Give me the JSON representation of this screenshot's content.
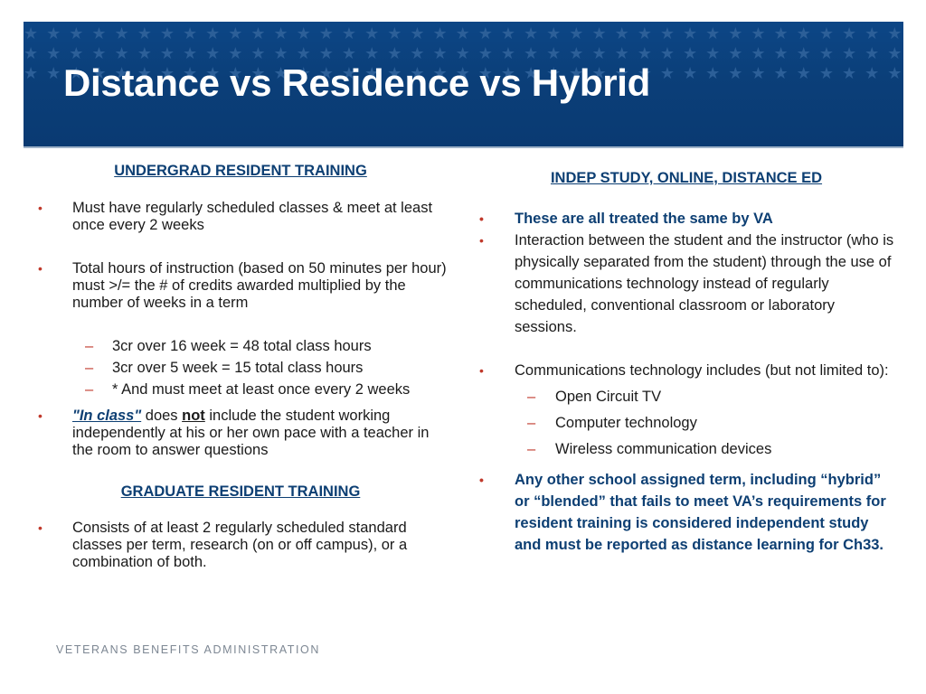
{
  "slide": {
    "title": "Distance vs Residence vs Hybrid",
    "footer": "VETERANS BENEFITS ADMINISTRATION",
    "colors": {
      "banner": "#0b3f79",
      "heading": "#0d3f73",
      "bullet": "#c0392b",
      "footer": "#7d8793"
    }
  },
  "left": {
    "heading1": "UNDERGRAD RESIDENT TRAINING",
    "b1": "Must have regularly scheduled classes & meet at least once every 2 weeks",
    "b2": "Total hours of instruction (based on 50 minutes per hour) must >/=  the # of credits awarded multiplied by the number of weeks in a term",
    "sub": [
      "3cr over 16 week = 48 total class hours",
      "3cr over 5 week = 15 total class hours",
      "* And must meet at least once every 2 weeks"
    ],
    "b3_em": "\"In class\"",
    "b3_a": " does ",
    "b3_not": "not",
    "b3_b": " include the student working independently at his or her own pace with a teacher in the room to answer questions",
    "heading2": "GRADUATE RESIDENT  TRAINING",
    "b4": "Consists of at least 2 regularly scheduled standard classes per term, research (on or off campus), or a combination of both."
  },
  "right": {
    "heading": "INDEP STUDY, ONLINE, DISTANCE ED",
    "b1": "These are all treated the same by VA",
    "b2": "Interaction between the student and the instructor (who is physically separated from the student) through the use of communications technology instead of regularly scheduled, conventional classroom or laboratory sessions.",
    "b3": "Communications technology includes (but  not limited to):",
    "sub": [
      "Open Circuit TV",
      "Computer technology",
      "Wireless communication devices"
    ],
    "b4": "Any other school assigned term, including “hybrid” or “blended” that fails to meet VA’s requirements for resident training is considered independent study and must be reported as distance learning for Ch33."
  }
}
